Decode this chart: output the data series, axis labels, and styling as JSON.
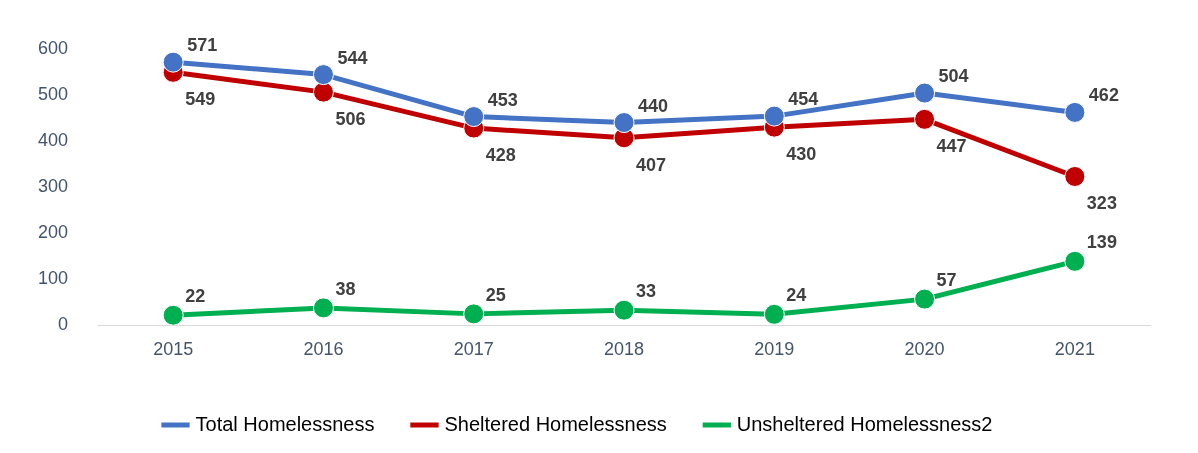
{
  "chart_data": {
    "type": "line",
    "categories": [
      "2015",
      "2016",
      "2017",
      "2018",
      "2019",
      "2020",
      "2021"
    ],
    "series": [
      {
        "name": "Total Homelessness",
        "color": "#4472c4",
        "values": [
          571,
          544,
          453,
          440,
          454,
          504,
          462
        ]
      },
      {
        "name": "Sheltered Homelessness",
        "color": "#c00000",
        "values": [
          549,
          506,
          428,
          407,
          430,
          447,
          323
        ]
      },
      {
        "name": "Unsheltered Homelessness2",
        "color": "#00b050",
        "values": [
          22,
          38,
          25,
          33,
          24,
          57,
          139
        ]
      }
    ],
    "ylim": [
      0,
      600
    ],
    "yticks": [
      0,
      100,
      200,
      300,
      400,
      500,
      600
    ],
    "grid": false,
    "legend": "bottom",
    "marker": "circle",
    "line_style": "solid",
    "data_labels": true
  }
}
